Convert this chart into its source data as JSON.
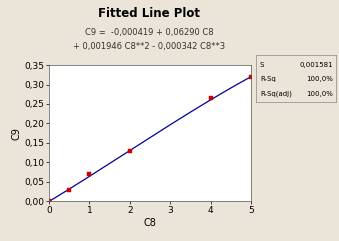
{
  "title": "Fitted Line Plot",
  "subtitle_line1": "C9 =  -0,000419 + 0,06290 C8",
  "subtitle_line2": "+ 0,001946 C8**2 - 0,000342 C8**3",
  "xlabel": "C8",
  "ylabel": "C9",
  "x_data": [
    0,
    0.5,
    1.0,
    2.0,
    4.0,
    5.0
  ],
  "y_data": [
    0.0,
    0.03,
    0.07,
    0.13,
    0.265,
    0.32
  ],
  "xlim": [
    0,
    5
  ],
  "ylim": [
    0,
    0.35
  ],
  "xticks": [
    0,
    1,
    2,
    3,
    4,
    5
  ],
  "yticks": [
    0.0,
    0.05,
    0.1,
    0.15,
    0.2,
    0.25,
    0.3,
    0.35
  ],
  "ytick_labels": [
    "0,00",
    "0,05",
    "0,10",
    "0,15",
    "0,20",
    "0,25",
    "0,30",
    "0,35"
  ],
  "xtick_labels": [
    "0",
    "1",
    "2",
    "3",
    "4",
    "5"
  ],
  "coeff": [
    -0.000419,
    0.0629,
    0.001946,
    -0.000342
  ],
  "marker_color": "#CC0000",
  "line_color": "#000099",
  "bg_color": "#EAE5D8",
  "plot_bg_color": "#FFFFFF",
  "legend_text": [
    "S",
    "R-Sq",
    "R-Sq(adj)"
  ],
  "legend_values": [
    "0,001581",
    "100,0%",
    "100,0%"
  ],
  "title_fontsize": 8.5,
  "subtitle_fontsize": 6.0,
  "axis_label_fontsize": 7,
  "tick_fontsize": 6.5,
  "legend_fontsize": 5.0
}
